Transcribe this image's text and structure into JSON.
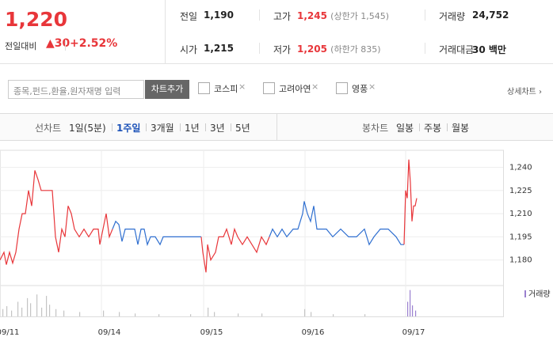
{
  "quote": {
    "price": "1,220",
    "change_label": "전일대비",
    "change": "30",
    "change_rate": "+2.52%",
    "fields": [
      [
        {
          "label": "전일",
          "value": "1,190"
        },
        {
          "label": "고가",
          "value": "1,245",
          "note": "(상한가 1,545)"
        },
        {
          "label": "거래량",
          "value": "24,752"
        }
      ],
      [
        {
          "label": "시가",
          "value": "1,215"
        },
        {
          "label": "저가",
          "value": "1,205",
          "note": "(하한가 835)"
        },
        {
          "label": "거래대금",
          "value": "30 백만"
        }
      ]
    ]
  },
  "search": {
    "placeholder": "종목,펀드,환율,원자재명 입력",
    "button": "차트추가",
    "checks": [
      "코스피",
      "고려아연",
      "영풍"
    ],
    "detail": "상세차트"
  },
  "tabs": {
    "line_label": "선차트",
    "line_tabs": [
      "1일(5분)",
      "1주일",
      "3개월",
      "1년",
      "3년",
      "5년"
    ],
    "selected": "1주일",
    "candle_label": "봉차트",
    "candle_tabs": [
      "일봉",
      "주봉",
      "월봉"
    ]
  },
  "chart_data": {
    "type": "line",
    "xlim": [
      0,
      635
    ],
    "xticks": [
      {
        "value": 0,
        "label": "09/11"
      },
      {
        "value": 128,
        "label": "09/14"
      },
      {
        "value": 257,
        "label": "09/15"
      },
      {
        "value": 385,
        "label": "09/16"
      },
      {
        "value": 512,
        "label": "09/17"
      }
    ],
    "ylim": [
      1165,
      1251
    ],
    "yticks": [
      {
        "value": 1240,
        "label": "1,240"
      },
      {
        "value": 1225,
        "label": "1,225"
      },
      {
        "value": 1210,
        "label": "1,210"
      },
      {
        "value": 1195,
        "label": "1,195"
      },
      {
        "value": 1180,
        "label": "1,180"
      }
    ],
    "grid": true,
    "series": [
      {
        "color": "#e8363a",
        "x": [
          0,
          5,
          8,
          12,
          16,
          20,
          24,
          28,
          32,
          36,
          40,
          44,
          48,
          52,
          56,
          62,
          66,
          70,
          74,
          78,
          82,
          86,
          90,
          94,
          100,
          106,
          112,
          118,
          124,
          126,
          130,
          134,
          138,
          142
        ],
        "values": [
          1180,
          1185,
          1177,
          1185,
          1178,
          1185,
          1200,
          1210,
          1210,
          1225,
          1215,
          1238,
          1232,
          1225,
          1225,
          1225,
          1225,
          1195,
          1185,
          1200,
          1195,
          1215,
          1210,
          1200,
          1195,
          1200,
          1195,
          1200,
          1200,
          1190,
          1200,
          1210,
          1195,
          1200
        ]
      },
      {
        "color": "#2f6fd0",
        "x": [
          142,
          146,
          150,
          154,
          158,
          162,
          170,
          174,
          178,
          182,
          186,
          190,
          196,
          202,
          206,
          212,
          230,
          240,
          254
        ],
        "values": [
          1200,
          1205,
          1203,
          1192,
          1200,
          1200,
          1200,
          1190,
          1200,
          1200,
          1190,
          1195,
          1195,
          1190,
          1195,
          1195,
          1195,
          1195,
          1195
        ]
      },
      {
        "color": "#e8363a",
        "x": [
          254,
          256,
          260,
          262,
          266,
          272,
          276,
          282,
          286,
          292,
          296,
          300,
          306,
          312,
          318,
          324,
          330,
          336,
          340
        ],
        "values": [
          1195,
          1185,
          1172,
          1190,
          1180,
          1185,
          1195,
          1195,
          1200,
          1190,
          1200,
          1195,
          1190,
          1195,
          1190,
          1185,
          1195,
          1190,
          1195
        ]
      },
      {
        "color": "#2f6fd0",
        "x": [
          340,
          344,
          350,
          356,
          362,
          370,
          376,
          382,
          384,
          388,
          392,
          396,
          400,
          406,
          412,
          420,
          430,
          440,
          450,
          460,
          466,
          472,
          480,
          490,
          500,
          506,
          510
        ],
        "values": [
          1195,
          1200,
          1195,
          1200,
          1195,
          1200,
          1200,
          1210,
          1218,
          1210,
          1205,
          1215,
          1200,
          1200,
          1200,
          1195,
          1200,
          1195,
          1195,
          1200,
          1190,
          1195,
          1200,
          1200,
          1195,
          1190,
          1190
        ]
      },
      {
        "color": "#e8363a",
        "x": [
          510,
          512,
          514,
          516,
          518,
          520,
          522,
          524,
          526
        ],
        "values": [
          1190,
          1225,
          1220,
          1245,
          1230,
          1205,
          1215,
          1215,
          1220
        ]
      }
    ],
    "volume": {
      "label": "거래량",
      "ylim": [
        0,
        40
      ],
      "series": [
        {
          "color": "#c4c4c4",
          "x": [
            3,
            8,
            14,
            22,
            27,
            34,
            38,
            46,
            52,
            58,
            62,
            70,
            80,
            100,
            130,
            150,
            170,
            200,
            240,
            262,
            270,
            300,
            330,
            384,
            392,
            420,
            460
          ],
          "values": [
            10,
            14,
            8,
            20,
            12,
            25,
            18,
            30,
            12,
            28,
            16,
            10,
            8,
            6,
            8,
            6,
            4,
            3,
            3,
            12,
            6,
            4,
            4,
            10,
            6,
            3,
            3
          ]
        },
        {
          "color": "#9a7fcf",
          "x": [
            514,
            517,
            520,
            524
          ],
          "values": [
            20,
            36,
            15,
            8
          ]
        }
      ]
    }
  }
}
